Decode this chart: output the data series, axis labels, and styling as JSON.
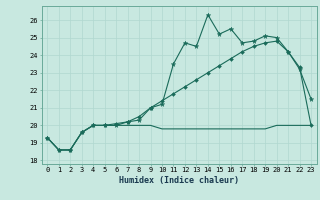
{
  "title": "",
  "xlabel": "Humidex (Indice chaleur)",
  "ylabel": "",
  "background_color": "#c8e8e0",
  "grid_color": "#b0d8d0",
  "line_color": "#1a6b5a",
  "xlim": [
    -0.5,
    23.5
  ],
  "ylim": [
    17.8,
    26.8
  ],
  "yticks": [
    18,
    19,
    20,
    21,
    22,
    23,
    24,
    25,
    26
  ],
  "xticks": [
    0,
    1,
    2,
    3,
    4,
    5,
    6,
    7,
    8,
    9,
    10,
    11,
    12,
    13,
    14,
    15,
    16,
    17,
    18,
    19,
    20,
    21,
    22,
    23
  ],
  "line1_x": [
    0,
    1,
    2,
    3,
    4,
    5,
    6,
    7,
    8,
    9,
    10,
    11,
    12,
    13,
    14,
    15,
    16,
    17,
    18,
    19,
    20,
    21,
    22,
    23
  ],
  "line1_y": [
    19.3,
    18.6,
    18.6,
    19.6,
    20.0,
    20.0,
    20.0,
    20.2,
    20.3,
    21.0,
    21.2,
    23.5,
    24.7,
    24.5,
    26.3,
    25.2,
    25.5,
    24.7,
    24.8,
    25.1,
    25.0,
    24.2,
    23.2,
    21.5
  ],
  "line2_x": [
    0,
    1,
    2,
    3,
    4,
    5,
    6,
    7,
    8,
    9,
    10,
    11,
    12,
    13,
    14,
    15,
    16,
    17,
    18,
    19,
    20,
    21,
    22,
    23
  ],
  "line2_y": [
    19.3,
    18.6,
    18.6,
    19.6,
    20.0,
    20.0,
    20.1,
    20.2,
    20.5,
    21.0,
    21.4,
    21.8,
    22.2,
    22.6,
    23.0,
    23.4,
    23.8,
    24.2,
    24.5,
    24.7,
    24.8,
    24.2,
    23.3,
    20.0
  ],
  "line3_x": [
    0,
    1,
    2,
    3,
    4,
    5,
    6,
    7,
    8,
    9,
    10,
    11,
    12,
    13,
    14,
    15,
    16,
    17,
    18,
    19,
    20,
    21,
    22,
    23
  ],
  "line3_y": [
    19.3,
    18.6,
    18.6,
    19.6,
    20.0,
    20.0,
    20.0,
    20.0,
    20.0,
    20.0,
    19.8,
    19.8,
    19.8,
    19.8,
    19.8,
    19.8,
    19.8,
    19.8,
    19.8,
    19.8,
    20.0,
    20.0,
    20.0,
    20.0
  ],
  "xlabel_fontsize": 6.0,
  "tick_fontsize": 5.0
}
